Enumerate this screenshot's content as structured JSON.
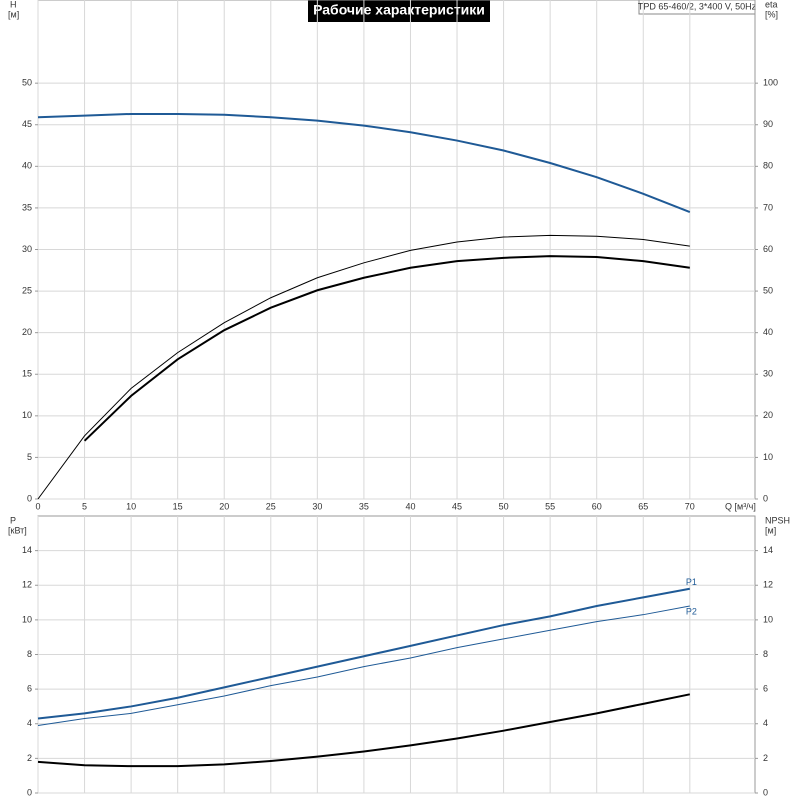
{
  "chart_data": [
    {
      "type": "line",
      "title": "Рабочие характеристики",
      "annotation": "TPD 65-460/2, 3*400 V, 50Hz",
      "y_label": "H",
      "y_unit": "[м]",
      "y2_label": "eta",
      "y2_unit": "[%]",
      "x_label": "Q [м³/ч]",
      "x": [
        0,
        5,
        10,
        15,
        20,
        25,
        30,
        35,
        40,
        45,
        50,
        55,
        60,
        65,
        70
      ],
      "xlim": [
        0,
        77
      ],
      "xticks": [
        0,
        5,
        10,
        15,
        20,
        25,
        30,
        35,
        40,
        45,
        50,
        55,
        60,
        65,
        70
      ],
      "ylim": [
        0,
        60
      ],
      "yticks": [
        0,
        5,
        10,
        15,
        20,
        25,
        30,
        35,
        40,
        45,
        50
      ],
      "y2lim": [
        0,
        120
      ],
      "y2ticks": [
        0,
        10,
        20,
        30,
        40,
        50,
        60,
        70,
        80,
        90,
        100
      ],
      "grid": true,
      "series": [
        {
          "color": "#1f5a96",
          "values": [
            45.9,
            46.1,
            46.3,
            46.3,
            46.2,
            45.9,
            45.5,
            44.9,
            44.1,
            43.1,
            41.9,
            40.4,
            38.7,
            36.7,
            34.5
          ]
        },
        {
          "color": "#000000",
          "axis": "y2",
          "values": [
            null,
            14,
            24.8,
            33.6,
            40.6,
            46,
            50.2,
            53.2,
            55.6,
            57.2,
            58,
            58.4,
            58.2,
            57.2,
            55.6
          ]
        },
        {
          "color": "#000000",
          "axis": "y2",
          "values": [
            0,
            15.2,
            26.6,
            35.2,
            42.4,
            48.4,
            53.2,
            56.8,
            59.8,
            61.8,
            63,
            63.4,
            63.2,
            62.4,
            60.8
          ]
        }
      ]
    },
    {
      "type": "line",
      "y_label": "P",
      "y_unit": "[кВт]",
      "y2_label": "NPSH",
      "y2_unit": "[м]",
      "x": [
        0,
        5,
        10,
        15,
        20,
        25,
        30,
        35,
        40,
        45,
        50,
        55,
        60,
        65,
        70
      ],
      "xlim": [
        0,
        77
      ],
      "xticks": [
        0,
        5,
        10,
        15,
        20,
        25,
        30,
        35,
        40,
        45,
        50,
        55,
        60,
        65,
        70
      ],
      "ylim": [
        0,
        16
      ],
      "yticks": [
        0,
        2,
        4,
        6,
        8,
        10,
        12,
        14
      ],
      "y2lim": [
        0,
        16
      ],
      "y2ticks": [
        0,
        2,
        4,
        6,
        8,
        10,
        12,
        14
      ],
      "grid": true,
      "series": [
        {
          "name": "P1",
          "color": "#1f5a96",
          "values": [
            4.3,
            4.6,
            5.0,
            5.5,
            6.1,
            6.7,
            7.3,
            7.9,
            8.5,
            9.1,
            9.7,
            10.2,
            10.8,
            11.3,
            11.8
          ]
        },
        {
          "name": "P2",
          "color": "#1f5a96",
          "values": [
            3.9,
            4.3,
            4.6,
            5.1,
            5.6,
            6.2,
            6.7,
            7.3,
            7.8,
            8.4,
            8.9,
            9.4,
            9.9,
            10.3,
            10.8
          ]
        },
        {
          "color": "#000000",
          "axis": "y2",
          "values": [
            1.8,
            1.6,
            1.55,
            1.55,
            1.65,
            1.85,
            2.1,
            2.4,
            2.75,
            3.15,
            3.6,
            4.1,
            4.6,
            5.15,
            5.7
          ]
        }
      ]
    }
  ]
}
